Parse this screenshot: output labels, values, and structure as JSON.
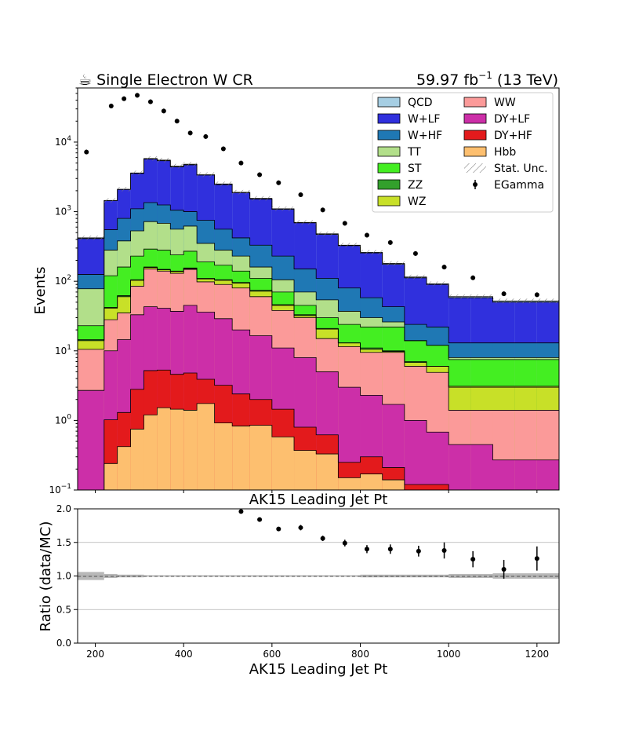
{
  "header": {
    "left_label": "☕ Single Electron W CR",
    "lumi_value": "59.97 fb",
    "lumi_exp": "−1",
    "lumi_energy": " (13 TeV)"
  },
  "chart_data": [
    {
      "type": "area",
      "subtype": "stacked-step-histogram",
      "xlabel": "AK15 Leading Jet Pt",
      "ylabel": "Events",
      "yscale": "log",
      "xlim": [
        160,
        1250
      ],
      "ylim": [
        0.1,
        60000
      ],
      "bin_edges": [
        160,
        220,
        250,
        280,
        310,
        340,
        370,
        400,
        430,
        470,
        510,
        550,
        600,
        650,
        700,
        750,
        800,
        850,
        900,
        950,
        1000,
        1050,
        1100,
        1150,
        1200,
        1250
      ],
      "x_ticks": [
        200,
        400,
        600,
        800,
        1000,
        1200
      ],
      "y_ticks": [
        {
          "base": "10",
          "exp": "−1"
        },
        {
          "base": "10",
          "exp": "0"
        },
        {
          "base": "10",
          "exp": "1"
        },
        {
          "base": "10",
          "exp": "2"
        },
        {
          "base": "10",
          "exp": "3"
        },
        {
          "base": "10",
          "exp": "4"
        }
      ],
      "legend_position": "top-right",
      "stack_order_bottom_to_top": [
        "Hbb",
        "DY+HF",
        "DY+LF",
        "WW",
        "WZ",
        "ZZ",
        "ST",
        "TT",
        "W+HF",
        "W+LF",
        "QCD"
      ],
      "series": [
        {
          "name": "QCD",
          "color": "#a6cee3",
          "cumulative_top": [
            420,
            1450,
            2100,
            3600,
            5800,
            5500,
            4500,
            4800,
            3400,
            2500,
            1900,
            1550,
            1100,
            700,
            480,
            330,
            260,
            180,
            115,
            92,
            60,
            60,
            52,
            52,
            52
          ]
        },
        {
          "name": "W+LF",
          "color": "#3030dd",
          "cumulative_top": [
            410,
            1440,
            2080,
            3550,
            5700,
            5400,
            4400,
            4700,
            3350,
            2450,
            1870,
            1520,
            1080,
            690,
            470,
            325,
            255,
            175,
            112,
            90,
            58,
            58,
            50,
            50,
            50
          ]
        },
        {
          "name": "W+HF",
          "color": "#1f78b4",
          "cumulative_top": [
            125,
            550,
            800,
            1100,
            1350,
            1250,
            1050,
            1000,
            750,
            560,
            420,
            330,
            230,
            150,
            110,
            80,
            58,
            43,
            24,
            22,
            13,
            13,
            13,
            13,
            13
          ]
        },
        {
          "name": "TT",
          "color": "#b2df8a",
          "cumulative_top": [
            78,
            280,
            380,
            530,
            720,
            680,
            560,
            620,
            350,
            280,
            230,
            160,
            105,
            70,
            54,
            37,
            30,
            26,
            14,
            12,
            8,
            8,
            8,
            8,
            8
          ]
        },
        {
          "name": "ST",
          "color": "#44ee22",
          "cumulative_top": [
            23,
            120,
            160,
            230,
            290,
            280,
            240,
            270,
            190,
            170,
            140,
            110,
            70,
            45,
            30,
            24,
            22,
            22,
            14,
            12,
            7.5,
            7.5,
            7.5,
            7.5,
            7.5
          ]
        },
        {
          "name": "ZZ",
          "color": "#33a02c",
          "cumulative_top": [
            14.5,
            42,
            62,
            105,
            160,
            148,
            140,
            155,
            110,
            105,
            96,
            74,
            46,
            33,
            21,
            13,
            11,
            10,
            7,
            6,
            3,
            3,
            3,
            3,
            3
          ]
        },
        {
          "name": "WZ",
          "color": "#c8e028",
          "cumulative_top": [
            14,
            41,
            60,
            103,
            158,
            146,
            138,
            152,
            108,
            103,
            94,
            72,
            45,
            32,
            20.5,
            13,
            10.5,
            9.8,
            6.8,
            6,
            3.1,
            3.1,
            3.1,
            3.1,
            3.1
          ]
        },
        {
          "name": "WW",
          "color": "#fb9a99",
          "cumulative_top": [
            10.5,
            28,
            35,
            85,
            150,
            140,
            130,
            148,
            98,
            90,
            80,
            60,
            38,
            30,
            15,
            11.5,
            9.5,
            9.5,
            6,
            4.9,
            1.4,
            1.4,
            1.4,
            1.4,
            1.4
          ]
        },
        {
          "name": "DY+LF",
          "color": "#cc2fa8",
          "cumulative_top": [
            2.7,
            10,
            14.5,
            33,
            43,
            41,
            37,
            45,
            36,
            29,
            20,
            16.5,
            11,
            8,
            5,
            3,
            2.3,
            1.7,
            1,
            0.68,
            0.45,
            0.45,
            0.27,
            0.27,
            0.27
          ]
        },
        {
          "name": "DY+HF",
          "color": "#e31a1c",
          "cumulative_top": [
            0.1,
            1.02,
            1.3,
            2.8,
            5.2,
            5.3,
            4.6,
            4.8,
            3.9,
            3.2,
            2.4,
            2,
            1.45,
            0.8,
            0.62,
            0.25,
            0.3,
            0.21,
            0.12,
            0.12,
            0.1,
            0.1,
            0.1,
            0.1,
            0.1
          ]
        },
        {
          "name": "Hbb",
          "color": "#fdbf6f",
          "cumulative_top": [
            0.1,
            0.24,
            0.42,
            0.75,
            1.2,
            1.52,
            1.45,
            1.4,
            1.75,
            0.92,
            0.83,
            0.85,
            0.58,
            0.37,
            0.33,
            0.15,
            0.17,
            0.14,
            0.1,
            0.1,
            0.1,
            0.1,
            0.1,
            0.1,
            0.1
          ]
        }
      ],
      "uncertainty": {
        "name": "Stat. Unc.",
        "style": "hatched"
      },
      "data_series": {
        "name": "EGamma",
        "color": "#000000",
        "points": [
          {
            "x": 180,
            "y": 7200
          },
          {
            "x": 236,
            "y": 33000
          },
          {
            "x": 265,
            "y": 42000
          },
          {
            "x": 295,
            "y": 47000
          },
          {
            "x": 325,
            "y": 38000
          },
          {
            "x": 355,
            "y": 28000
          },
          {
            "x": 385,
            "y": 20000
          },
          {
            "x": 415,
            "y": 13500
          },
          {
            "x": 450,
            "y": 12000
          },
          {
            "x": 490,
            "y": 8000
          },
          {
            "x": 530,
            "y": 5000
          },
          {
            "x": 572,
            "y": 3400
          },
          {
            "x": 615,
            "y": 2600
          },
          {
            "x": 665,
            "y": 1750
          },
          {
            "x": 715,
            "y": 1060
          },
          {
            "x": 765,
            "y": 680
          },
          {
            "x": 815,
            "y": 460
          },
          {
            "x": 868,
            "y": 360
          },
          {
            "x": 925,
            "y": 250
          },
          {
            "x": 990,
            "y": 160
          },
          {
            "x": 1055,
            "y": 112
          },
          {
            "x": 1125,
            "y": 66
          },
          {
            "x": 1200,
            "y": 64
          }
        ]
      }
    },
    {
      "type": "scatter",
      "subtype": "ratio-with-error-bars",
      "title": "AK15 Leading Jet Pt",
      "xlabel": "AK15 Leading Jet Pt",
      "ylabel": "Ratio (data/MC)",
      "xlim": [
        160,
        1250
      ],
      "ylim": [
        0.0,
        2.0
      ],
      "x_ticks": [
        200,
        400,
        600,
        800,
        1000,
        1200
      ],
      "y_ticks": [
        "0.0",
        "0.5",
        "1.0",
        "1.5",
        "2.0"
      ],
      "grid": "horizontal",
      "reference_line": 1.0,
      "points": [
        {
          "x": 530,
          "y": 1.96,
          "err": 0.02
        },
        {
          "x": 572,
          "y": 1.84,
          "err": 0.02
        },
        {
          "x": 615,
          "y": 1.7,
          "err": 0.03
        },
        {
          "x": 665,
          "y": 1.72,
          "err": 0.04
        },
        {
          "x": 715,
          "y": 1.56,
          "err": 0.04
        },
        {
          "x": 765,
          "y": 1.49,
          "err": 0.05
        },
        {
          "x": 815,
          "y": 1.4,
          "err": 0.06
        },
        {
          "x": 868,
          "y": 1.4,
          "err": 0.07
        },
        {
          "x": 932,
          "y": 1.37,
          "err": 0.08
        },
        {
          "x": 990,
          "y": 1.38,
          "err": 0.12
        },
        {
          "x": 1055,
          "y": 1.25,
          "err": 0.12
        },
        {
          "x": 1125,
          "y": 1.1,
          "err": 0.14
        },
        {
          "x": 1200,
          "y": 1.26,
          "err": 0.18
        }
      ],
      "uncertainty_band": [
        0.06,
        0.03,
        0.02,
        0.02,
        0.01,
        0.01,
        0.01,
        0.01,
        0.01,
        0.01,
        0.01,
        0.01,
        0.01,
        0.01,
        0.01,
        0.01,
        0.02,
        0.02,
        0.02,
        0.02,
        0.03,
        0.03,
        0.04,
        0.04,
        0.04
      ]
    }
  ]
}
